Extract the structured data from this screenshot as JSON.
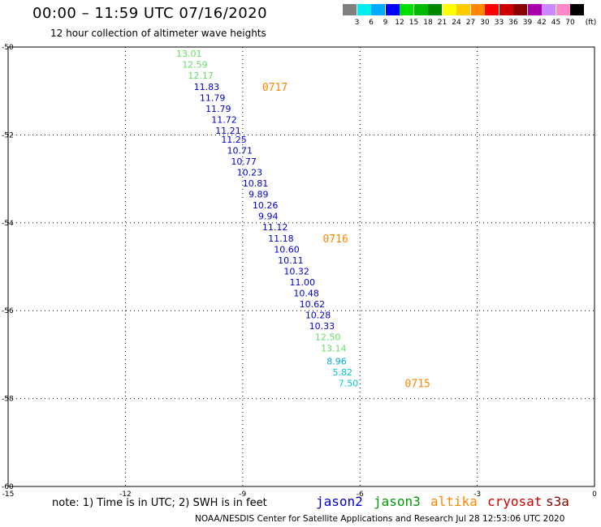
{
  "header": {
    "title": "00:00 – 11:59 UTC 07/16/2020",
    "subtitle": "12 hour collection of altimeter wave heights"
  },
  "legend": {
    "unit": "(ft)",
    "colors": [
      "#808080",
      "#00eeee",
      "#00aaff",
      "#0000ff",
      "#00dd00",
      "#00bb00",
      "#008800",
      "#ffff00",
      "#ffcc00",
      "#ff8800",
      "#ff0000",
      "#cc0000",
      "#880000",
      "#aa00aa",
      "#cc88ff",
      "#ff88cc",
      "#000000"
    ],
    "labels": [
      "3",
      "6",
      "9",
      "12",
      "15",
      "18",
      "21",
      "24",
      "27",
      "30",
      "33",
      "36",
      "39",
      "42",
      "45",
      "70"
    ]
  },
  "note": "note: 1) Time is in UTC; 2) SWH is in feet",
  "footer": "NOAA/NESDIS Center for Satellite Applications and Research    Jul 28 12:53:06 UTC 2020",
  "satellites": [
    {
      "name": "jason2",
      "color": "#0000cc"
    },
    {
      "name": "jason3",
      "color": "#009900"
    },
    {
      "name": "altika",
      "color": "#ff8800"
    },
    {
      "name": "cryosat",
      "color": "#cc0000"
    },
    {
      "name": "s3a",
      "color": "#880000"
    }
  ],
  "chart_data": {
    "type": "scatter",
    "xlim": [
      -15,
      0
    ],
    "ylim": [
      -60,
      -50
    ],
    "xticks": [
      "-15",
      "-12",
      "-9",
      "-6",
      "-3",
      "0"
    ],
    "yticks": [
      "-50",
      "-52",
      "-54",
      "-56",
      "-58",
      "-60"
    ],
    "grid": true,
    "points": [
      {
        "x": -10.7,
        "y": -50.15,
        "label": "13.01",
        "color": "#66dd66"
      },
      {
        "x": -10.55,
        "y": -50.4,
        "label": "12.59",
        "color": "#66dd66"
      },
      {
        "x": -10.4,
        "y": -50.65,
        "label": "12.17",
        "color": "#66dd66"
      },
      {
        "x": -10.25,
        "y": -50.9,
        "label": "11.83",
        "color": "#0000cc"
      },
      {
        "x": -10.1,
        "y": -51.15,
        "label": "11.79",
        "color": "#0000cc"
      },
      {
        "x": -9.95,
        "y": -51.4,
        "label": "11.79",
        "color": "#0000cc"
      },
      {
        "x": -9.8,
        "y": -51.65,
        "label": "11.72",
        "color": "#0000cc"
      },
      {
        "x": -9.7,
        "y": -51.9,
        "label": "11.21",
        "color": "#0000cc"
      },
      {
        "x": -9.55,
        "y": -52.1,
        "label": "11.25",
        "color": "#0000cc"
      },
      {
        "x": -9.4,
        "y": -52.35,
        "label": "10.71",
        "color": "#0000cc"
      },
      {
        "x": -9.3,
        "y": -52.6,
        "label": "10.77",
        "color": "#0000cc"
      },
      {
        "x": -9.15,
        "y": -52.85,
        "label": "10.23",
        "color": "#0000cc"
      },
      {
        "x": -9.0,
        "y": -53.1,
        "label": "10.81",
        "color": "#0000cc"
      },
      {
        "x": -8.85,
        "y": -53.35,
        "label": "9.89",
        "color": "#0000cc"
      },
      {
        "x": -8.75,
        "y": -53.6,
        "label": "10.26",
        "color": "#0000cc"
      },
      {
        "x": -8.6,
        "y": -53.85,
        "label": "9.94",
        "color": "#0000cc"
      },
      {
        "x": -8.5,
        "y": -54.1,
        "label": "11.12",
        "color": "#0000cc"
      },
      {
        "x": -8.35,
        "y": -54.35,
        "label": "11.18",
        "color": "#0000cc"
      },
      {
        "x": -8.2,
        "y": -54.6,
        "label": "10.60",
        "color": "#0000cc"
      },
      {
        "x": -8.1,
        "y": -54.85,
        "label": "10.11",
        "color": "#0000cc"
      },
      {
        "x": -7.95,
        "y": -55.1,
        "label": "10.32",
        "color": "#0000cc"
      },
      {
        "x": -7.8,
        "y": -55.35,
        "label": "11.00",
        "color": "#0000cc"
      },
      {
        "x": -7.7,
        "y": -55.6,
        "label": "10.48",
        "color": "#0000cc"
      },
      {
        "x": -7.55,
        "y": -55.85,
        "label": "10.62",
        "color": "#0000cc"
      },
      {
        "x": -7.4,
        "y": -56.1,
        "label": "10.28",
        "color": "#0000cc"
      },
      {
        "x": -7.3,
        "y": -56.35,
        "label": "10.33",
        "color": "#0000cc"
      },
      {
        "x": -7.15,
        "y": -56.6,
        "label": "12.50",
        "color": "#66dd66"
      },
      {
        "x": -7.0,
        "y": -56.85,
        "label": "13.14",
        "color": "#66dd66"
      },
      {
        "x": -6.85,
        "y": -57.15,
        "label": "8.96",
        "color": "#00aadd"
      },
      {
        "x": -6.7,
        "y": -57.4,
        "label": "5.82",
        "color": "#00cccc"
      },
      {
        "x": -6.55,
        "y": -57.65,
        "label": "7.50",
        "color": "#00cccc"
      }
    ],
    "time_labels": [
      {
        "x": -8.5,
        "y": -50.9,
        "label": "0717",
        "color": "#ff8800"
      },
      {
        "x": -6.95,
        "y": -54.35,
        "label": "0716",
        "color": "#ff8800"
      },
      {
        "x": -4.85,
        "y": -57.65,
        "label": "0715",
        "color": "#ff8800"
      }
    ]
  }
}
